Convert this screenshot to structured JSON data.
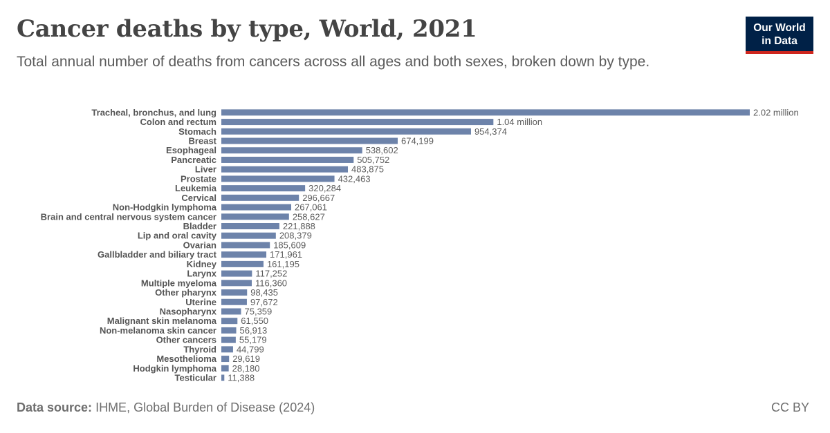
{
  "header": {
    "title": "Cancer deaths by type, World, 2021",
    "subtitle": "Total annual number of deaths from cancers across all ages and both sexes, broken down by type."
  },
  "logo": {
    "line1": "Our World",
    "line2": "in Data"
  },
  "footer": {
    "source_label": "Data source:",
    "source_text": "IHME, Global Burden of Disease (2024)",
    "license": "CC BY"
  },
  "colors": {
    "bar": "#6d83aa",
    "logo_bg": "#002147",
    "logo_accent": "#ce261e"
  },
  "chart_data": {
    "type": "bar",
    "orientation": "horizontal",
    "title": "Cancer deaths by type, World, 2021",
    "categories": [
      "Tracheal, bronchus, and lung",
      "Colon and rectum",
      "Stomach",
      "Breast",
      "Esophageal",
      "Pancreatic",
      "Liver",
      "Prostate",
      "Leukemia",
      "Cervical",
      "Non-Hodgkin lymphoma",
      "Brain and central nervous system cancer",
      "Bladder",
      "Lip and oral cavity",
      "Ovarian",
      "Gallbladder and biliary tract",
      "Kidney",
      "Larynx",
      "Multiple myeloma",
      "Other pharynx",
      "Uterine",
      "Nasopharynx",
      "Malignant skin melanoma",
      "Non-melanoma skin cancer",
      "Other cancers",
      "Thyroid",
      "Mesothelioma",
      "Hodgkin lymphoma",
      "Testicular"
    ],
    "values": [
      2020000,
      1040000,
      954374,
      674199,
      538602,
      505752,
      483875,
      432463,
      320284,
      296667,
      267061,
      258627,
      221888,
      208379,
      185609,
      171961,
      161195,
      117252,
      116360,
      98435,
      97672,
      75359,
      61550,
      56913,
      55179,
      44799,
      29619,
      28180,
      11388
    ],
    "value_labels": [
      "2.02 million",
      "1.04 million",
      "954,374",
      "674,199",
      "538,602",
      "505,752",
      "483,875",
      "432,463",
      "320,284",
      "296,667",
      "267,061",
      "258,627",
      "221,888",
      "208,379",
      "185,609",
      "171,961",
      "161,195",
      "117,252",
      "116,360",
      "98,435",
      "97,672",
      "75,359",
      "61,550",
      "56,913",
      "55,179",
      "44,799",
      "29,619",
      "28,180",
      "11,388"
    ],
    "xlim": [
      0,
      2020000
    ],
    "grid": false,
    "legend": "none"
  }
}
